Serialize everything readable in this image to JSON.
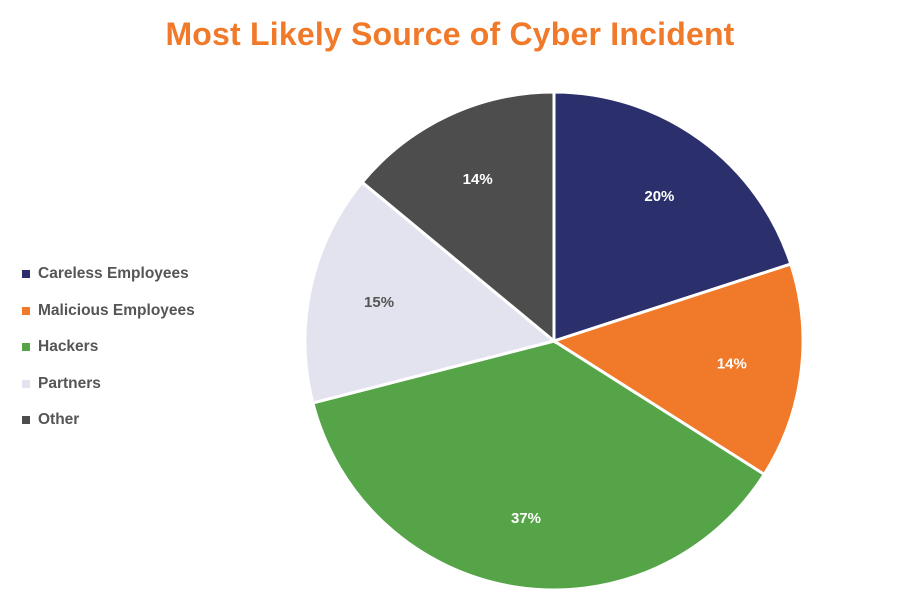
{
  "chart_data": {
    "type": "pie",
    "title": "Most Likely Source of Cyber Incident",
    "slices": [
      {
        "label": "Careless Employees",
        "value": 20,
        "display": "20%",
        "color": "#2B2F6B",
        "label_color": "#ffffff"
      },
      {
        "label": "Malicious Employees",
        "value": 14,
        "display": "14%",
        "color": "#F07A2A",
        "label_color": "#ffffff"
      },
      {
        "label": "Hackers",
        "value": 37,
        "display": "37%",
        "color": "#55A447",
        "label_color": "#ffffff"
      },
      {
        "label": "Partners",
        "value": 15,
        "display": "15%",
        "color": "#E2E3EF",
        "label_color": "#555555"
      },
      {
        "label": "Other",
        "value": 14,
        "display": "14%",
        "color": "#4D4D4D",
        "label_color": "#ffffff"
      }
    ],
    "start_angle": "12 o'clock",
    "direction": "clockwise",
    "legend_position": "left"
  }
}
